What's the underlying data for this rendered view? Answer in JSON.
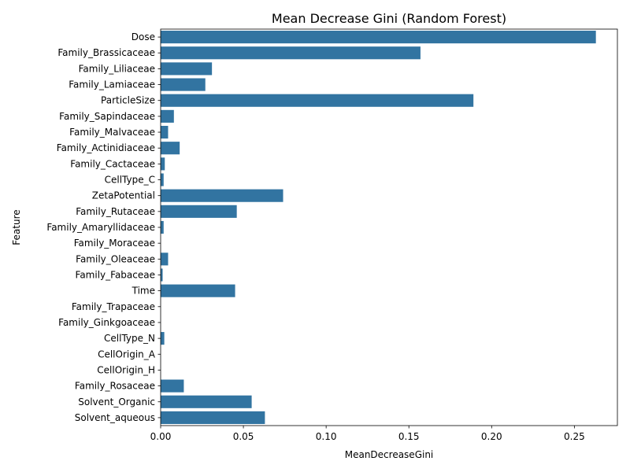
{
  "chart_data": {
    "type": "bar",
    "orientation": "horizontal",
    "title": "Mean Decrease Gini (Random Forest)",
    "xlabel": "MeanDecreaseGini",
    "ylabel": "Feature",
    "xlim": [
      0,
      0.276
    ],
    "xticks": [
      0.0,
      0.05,
      0.1,
      0.15,
      0.2,
      0.25
    ],
    "xtick_labels": [
      "0.00",
      "0.05",
      "0.10",
      "0.15",
      "0.20",
      "0.25"
    ],
    "grid": false,
    "bar_color": "#3274a1",
    "categories": [
      "Dose",
      "Family_Brassicaceae",
      "Family_Liliaceae",
      "Family_Lamiaceae",
      "ParticleSize",
      "Family_Sapindaceae",
      "Family_Malvaceae",
      "Family_Actinidiaceae ",
      "Family_Cactaceae",
      "CellType_C",
      "ZetaPotential",
      "Family_Rutaceae",
      "Family_Amaryllidaceae",
      "Family_Moraceae",
      "Family_Oleaceae",
      "Family_Fabaceae",
      "Time",
      "Family_Trapaceae",
      "Family_Ginkgoaceae",
      "CellType_N",
      "CellOrigin_A",
      "CellOrigin_H",
      "Family_Rosaceae",
      "Solvent_Organic",
      "Solvent_aqueous"
    ],
    "values": [
      0.263,
      0.157,
      0.031,
      0.027,
      0.189,
      0.008,
      0.0045,
      0.0115,
      0.0025,
      0.0018,
      0.074,
      0.046,
      0.0018,
      0.0,
      0.0045,
      0.0012,
      0.045,
      0.0,
      0.0,
      0.0022,
      0.0,
      0.0,
      0.014,
      0.055,
      0.063
    ]
  }
}
